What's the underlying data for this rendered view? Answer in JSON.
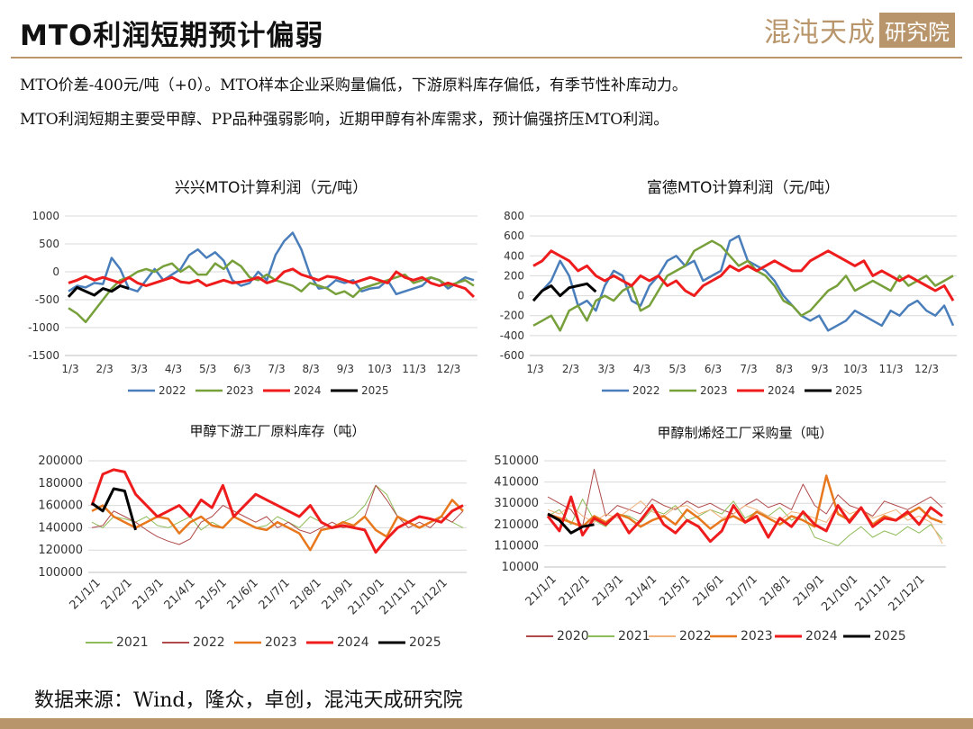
{
  "header": {
    "title": "MTO利润短期预计偏弱",
    "logo_text": "混沌天成",
    "logo_box": "研究院"
  },
  "commentary": {
    "line1": "MTO价差-400元/吨（+0）。MTO样本企业采购量偏低，下游原料库存偏低，有季节性补库动力。",
    "line2": "MTO利润短期主要受甲醇、PP品种强弱影响，近期甲醇有补库需求，预计偏强挤压MTO利润。"
  },
  "footer": {
    "source": "数据来源：Wind，隆众，卓创，混沌天成研究院"
  },
  "colors": {
    "brand": "#b8956a",
    "y2020": "#b04a4a",
    "y2021": "#8fbc5a",
    "y2022": "#f0b27a",
    "y2022_blue": "#4a7ebb",
    "y2023_green": "#77a03b",
    "y2023": "#e8781e",
    "y2024": "#ee1c1c",
    "y2025": "#000000"
  },
  "chart_data": [
    {
      "type": "line",
      "title": "兴兴MTO计算利润（元/吨）",
      "ylim": [
        -1500,
        1000
      ],
      "yticks": [
        1000,
        500,
        0,
        -500,
        -1000,
        -1500
      ],
      "ytick_labels": [
        "1000",
        "500",
        "0",
        "-500",
        "-1000",
        "-1500"
      ],
      "x_labels": [
        "1/3",
        "2/3",
        "3/3",
        "4/3",
        "5/3",
        "6/3",
        "7/3",
        "8/3",
        "9/3",
        "10/3",
        "11/3",
        "12/3"
      ],
      "legend": "bottom",
      "series": [
        {
          "name": "2022",
          "color": "#4a7ebb",
          "values": [
            -350,
            -250,
            -280,
            -200,
            -220,
            250,
            50,
            -300,
            -350,
            -150,
            50,
            -150,
            -50,
            50,
            300,
            400,
            250,
            350,
            200,
            -150,
            -250,
            -200,
            0,
            -150,
            300,
            550,
            700,
            400,
            -50,
            -300,
            -280,
            -150,
            -200,
            -150,
            -350,
            -300,
            -280,
            -150,
            -400,
            -350,
            -300,
            -250,
            -100,
            -150,
            -300,
            -200,
            -100,
            -150
          ]
        },
        {
          "name": "2023",
          "color": "#77a03b",
          "values": [
            -650,
            -750,
            -900,
            -700,
            -500,
            -300,
            -150,
            -100,
            0,
            50,
            0,
            100,
            150,
            0,
            100,
            -50,
            -50,
            150,
            50,
            200,
            100,
            -100,
            -150,
            -50,
            -150,
            -200,
            -250,
            -350,
            -200,
            -250,
            -300,
            -400,
            -350,
            -450,
            -300,
            -250,
            -200,
            -150,
            -100,
            -50,
            -200,
            -150,
            -100,
            -150,
            -250,
            -200,
            -150,
            -250
          ]
        },
        {
          "name": "2024",
          "color": "#ee1c1c",
          "values": [
            -200,
            -150,
            -80,
            -150,
            -100,
            -150,
            -200,
            -100,
            -200,
            -250,
            -200,
            -150,
            -100,
            -180,
            -200,
            -150,
            -250,
            -200,
            -150,
            -200,
            -180,
            -150,
            -100,
            -200,
            -150,
            0,
            50,
            -50,
            -100,
            -150,
            -80,
            -100,
            -150,
            -200,
            -150,
            -100,
            -150,
            -200,
            0,
            -100,
            -150,
            -100,
            -200,
            -250,
            -200,
            -250,
            -300,
            -450
          ]
        },
        {
          "name": "2025",
          "color": "#000000",
          "values": [
            -450,
            -280,
            -350,
            -420,
            -300,
            -350,
            -250,
            -300
          ]
        }
      ]
    },
    {
      "type": "line",
      "title": "富德MTO计算利润（元/吨）",
      "ylim": [
        -600,
        800
      ],
      "yticks": [
        800,
        600,
        400,
        200,
        0,
        -200,
        -400,
        -600
      ],
      "ytick_labels": [
        "800",
        "600",
        "400",
        "200",
        "0",
        "-200",
        "-400",
        "-600"
      ],
      "x_labels": [
        "1/3",
        "2/3",
        "3/3",
        "4/3",
        "5/3",
        "6/3",
        "7/3",
        "8/3",
        "9/3",
        "10/3",
        "11/3",
        "12/3"
      ],
      "legend": "bottom",
      "series": [
        {
          "name": "2022",
          "color": "#4a7ebb",
          "values": [
            -50,
            50,
            150,
            350,
            200,
            -100,
            -50,
            -150,
            100,
            250,
            200,
            -50,
            -100,
            100,
            200,
            350,
            400,
            300,
            350,
            150,
            200,
            250,
            550,
            600,
            350,
            300,
            250,
            150,
            0,
            -100,
            -200,
            -250,
            -200,
            -350,
            -300,
            -250,
            -150,
            -200,
            -250,
            -300,
            -150,
            -200,
            -100,
            -50,
            -150,
            -200,
            -100,
            -300
          ]
        },
        {
          "name": "2023",
          "color": "#77a03b",
          "values": [
            -300,
            -250,
            -200,
            -350,
            -150,
            -100,
            -250,
            -50,
            0,
            -50,
            50,
            100,
            -150,
            -100,
            50,
            200,
            250,
            300,
            450,
            500,
            550,
            500,
            400,
            300,
            350,
            250,
            200,
            100,
            -50,
            -100,
            -200,
            -150,
            -50,
            50,
            100,
            200,
            50,
            100,
            150,
            100,
            50,
            200,
            100,
            150,
            200,
            100,
            150,
            200
          ]
        },
        {
          "name": "2024",
          "color": "#ee1c1c",
          "values": [
            300,
            350,
            450,
            400,
            350,
            250,
            300,
            200,
            150,
            200,
            150,
            100,
            200,
            150,
            200,
            100,
            150,
            50,
            0,
            100,
            150,
            200,
            300,
            250,
            300,
            250,
            300,
            350,
            300,
            250,
            250,
            350,
            400,
            450,
            400,
            350,
            300,
            350,
            200,
            250,
            200,
            150,
            200,
            150,
            100,
            50,
            100,
            -50
          ]
        },
        {
          "name": "2025",
          "color": "#000000",
          "values": [
            -50,
            50,
            100,
            0,
            80,
            100,
            120,
            40
          ]
        }
      ]
    },
    {
      "type": "line",
      "title": "甲醇下游工厂原料库存（吨）",
      "ylim": [
        100000,
        200000
      ],
      "yticks": [
        200000,
        180000,
        160000,
        140000,
        120000,
        100000
      ],
      "ytick_labels": [
        "200000",
        "180000",
        "160000",
        "140000",
        "120000",
        "100000"
      ],
      "x_labels": [
        "21/1/1",
        "21/2/1",
        "21/3/1",
        "21/4/1",
        "21/5/1",
        "21/6/1",
        "21/7/1",
        "21/8/1",
        "21/9/1",
        "21/10/1",
        "21/11/1",
        "21/12/1"
      ],
      "legend": "bottom",
      "series": [
        {
          "name": "2021",
          "color": "#8fbc5a",
          "values": [
            145000,
            140000,
            150000,
            148000,
            145000,
            150000,
            142000,
            140000,
            145000,
            150000,
            138000,
            145000,
            140000,
            150000,
            145000,
            140000,
            142000,
            150000,
            145000,
            140000,
            150000,
            145000,
            140000,
            145000,
            150000,
            160000,
            178000,
            170000,
            150000,
            145000,
            140000,
            145000,
            150000,
            145000,
            140000
          ]
        },
        {
          "name": "2022",
          "color": "#b04a4a",
          "values": [
            140000,
            142000,
            155000,
            150000,
            145000,
            138000,
            132000,
            128000,
            125000,
            130000,
            145000,
            150000,
            160000,
            155000,
            150000,
            145000,
            150000,
            140000,
            145000,
            138000,
            135000,
            140000,
            145000,
            140000,
            142000,
            150000,
            178000,
            165000,
            150000,
            140000,
            145000,
            140000,
            150000,
            145000,
            155000
          ]
        },
        {
          "name": "2023",
          "color": "#e8781e",
          "values": [
            155000,
            160000,
            150000,
            145000,
            140000,
            145000,
            150000,
            148000,
            135000,
            145000,
            150000,
            142000,
            140000,
            150000,
            145000,
            140000,
            138000,
            145000,
            140000,
            135000,
            120000,
            138000,
            140000,
            145000,
            142000,
            150000,
            138000,
            132000,
            150000,
            145000,
            140000,
            145000,
            150000,
            165000,
            155000
          ]
        },
        {
          "name": "2024",
          "color": "#ee1c1c",
          "values": [
            160000,
            188000,
            192000,
            190000,
            170000,
            160000,
            150000,
            155000,
            160000,
            150000,
            165000,
            158000,
            178000,
            150000,
            160000,
            170000,
            165000,
            160000,
            155000,
            150000,
            160000,
            145000,
            140000,
            142000,
            140000,
            138000,
            118000,
            130000,
            140000,
            145000,
            150000,
            148000,
            145000,
            155000,
            160000
          ]
        },
        {
          "name": "2025",
          "color": "#000000",
          "values": [
            162000,
            155000,
            175000,
            173000,
            138000
          ]
        }
      ]
    },
    {
      "type": "line",
      "title": "甲醇制烯烃工厂采购量（吨）",
      "ylim": [
        10000,
        510000
      ],
      "yticks": [
        510000,
        410000,
        310000,
        210000,
        110000,
        10000
      ],
      "ytick_labels": [
        "510000",
        "410000",
        "310000",
        "210000",
        "110000",
        "10000"
      ],
      "x_labels": [
        "21/1/1",
        "21/2/1",
        "21/3/1",
        "21/4/1",
        "21/5/1",
        "21/6/1",
        "21/7/1",
        "21/8/1",
        "21/9/1",
        "21/10/1",
        "21/11/1",
        "21/12/1"
      ],
      "legend": "bottom",
      "series": [
        {
          "name": "2020",
          "color": "#b04a4a",
          "values": [
            340000,
            310000,
            280000,
            200000,
            470000,
            250000,
            300000,
            280000,
            260000,
            330000,
            300000,
            280000,
            320000,
            290000,
            310000,
            280000,
            260000,
            300000,
            330000,
            290000,
            310000,
            280000,
            400000,
            300000,
            260000,
            350000,
            300000,
            280000,
            250000,
            320000,
            300000,
            280000,
            310000,
            340000,
            290000
          ]
        },
        {
          "name": "2021",
          "color": "#8fbc5a",
          "values": [
            250000,
            280000,
            210000,
            330000,
            230000,
            200000,
            260000,
            250000,
            220000,
            280000,
            260000,
            300000,
            230000,
            250000,
            280000,
            260000,
            320000,
            240000,
            270000,
            250000,
            290000,
            230000,
            260000,
            150000,
            130000,
            110000,
            160000,
            200000,
            150000,
            180000,
            160000,
            200000,
            170000,
            210000,
            140000
          ]
        },
        {
          "name": "2022",
          "color": "#f0b27a",
          "values": [
            280000,
            260000,
            300000,
            250000,
            220000,
            260000,
            240000,
            280000,
            320000,
            270000,
            250000,
            290000,
            300000,
            260000,
            280000,
            240000,
            260000,
            300000,
            280000,
            250000,
            230000,
            270000,
            260000,
            240000,
            220000,
            300000,
            260000,
            280000,
            240000,
            260000,
            280000,
            230000,
            250000,
            220000,
            120000
          ]
        },
        {
          "name": "2023",
          "color": "#e8781e",
          "values": [
            260000,
            240000,
            220000,
            200000,
            250000,
            220000,
            260000,
            240000,
            200000,
            230000,
            250000,
            210000,
            280000,
            240000,
            190000,
            230000,
            250000,
            220000,
            270000,
            240000,
            210000,
            250000,
            230000,
            200000,
            440000,
            260000,
            230000,
            290000,
            210000,
            250000,
            230000,
            260000,
            290000,
            240000,
            220000
          ]
        },
        {
          "name": "2024",
          "color": "#ee1c1c",
          "values": [
            250000,
            180000,
            340000,
            160000,
            240000,
            210000,
            260000,
            170000,
            230000,
            300000,
            210000,
            170000,
            230000,
            200000,
            130000,
            180000,
            300000,
            220000,
            250000,
            150000,
            240000,
            200000,
            270000,
            210000,
            180000,
            300000,
            220000,
            290000,
            200000,
            240000,
            230000,
            270000,
            210000,
            290000,
            250000
          ]
        },
        {
          "name": "2025",
          "color": "#000000",
          "values": [
            260000,
            230000,
            170000,
            200000,
            210000
          ]
        }
      ]
    }
  ]
}
